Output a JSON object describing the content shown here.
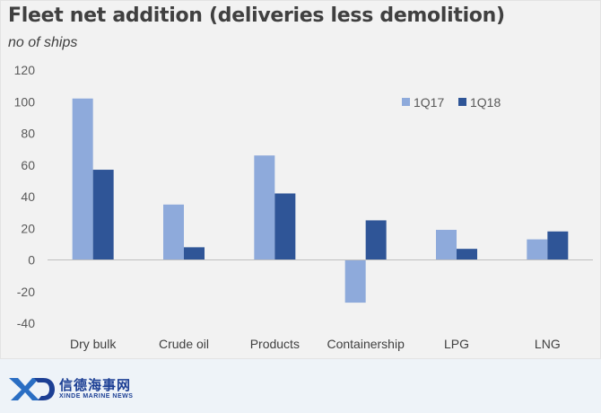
{
  "chart_data": {
    "type": "bar",
    "title": "Fleet net addition (deliveries less demolition)",
    "subtitle": "no of ships",
    "categories": [
      "Dry bulk",
      "Crude oil",
      "Products",
      "Containership",
      "LPG",
      "LNG"
    ],
    "series": [
      {
        "name": "1Q17",
        "color": "#8eaadb",
        "values": [
          102,
          35,
          66,
          -27,
          19,
          13
        ]
      },
      {
        "name": "1Q18",
        "color": "#2f5597",
        "values": [
          57,
          8,
          42,
          25,
          7,
          18
        ]
      }
    ],
    "ylim": [
      -40,
      120
    ],
    "yticks": [
      -40,
      -20,
      0,
      20,
      40,
      60,
      80,
      100,
      120
    ],
    "xlabel": "",
    "ylabel": "",
    "grid": false,
    "legend_position": "top-right"
  },
  "footer": {
    "logo_mark": "XD",
    "brand_cn": "信德海事网",
    "brand_en": "XINDE MARINE NEWS"
  }
}
